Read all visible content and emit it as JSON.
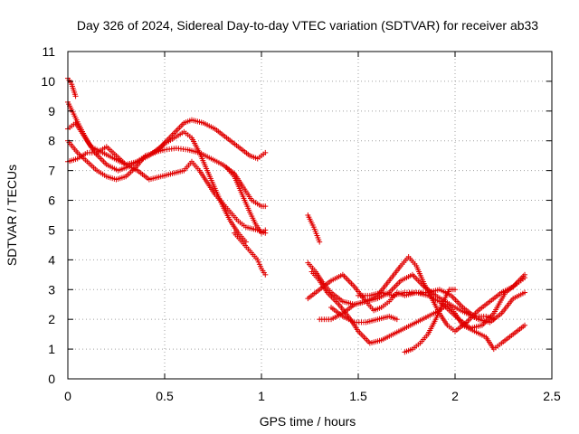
{
  "chart_data": {
    "type": "scatter",
    "title": "Day 326 of 2024, Sidereal Day-to-day VTEC variation (SDTVAR) for receiver ab33",
    "xlabel": "GPS time / hours",
    "ylabel": "SDTVAR / TECUs",
    "xlim": [
      0,
      2.5
    ],
    "ylim": [
      0,
      11
    ],
    "x_ticks": [
      "0",
      "0.5",
      "1",
      "1.5",
      "2",
      "2.5"
    ],
    "y_ticks": [
      "0",
      "1",
      "2",
      "3",
      "4",
      "5",
      "6",
      "7",
      "8",
      "9",
      "10",
      "11"
    ],
    "grid": true,
    "marker": "+",
    "color": "#e00000",
    "series_paths": [
      [
        [
          0.0,
          10.1
        ],
        [
          0.02,
          9.9
        ],
        [
          0.04,
          9.5
        ]
      ],
      [
        [
          0.0,
          9.3
        ],
        [
          0.03,
          8.9
        ],
        [
          0.06,
          8.5
        ],
        [
          0.1,
          8.0
        ],
        [
          0.14,
          7.6
        ],
        [
          0.2,
          7.2
        ],
        [
          0.26,
          7.0
        ],
        [
          0.32,
          7.15
        ],
        [
          0.38,
          7.4
        ],
        [
          0.44,
          7.6
        ],
        [
          0.5,
          7.7
        ],
        [
          0.56,
          7.75
        ],
        [
          0.62,
          7.7
        ],
        [
          0.68,
          7.6
        ],
        [
          0.74,
          7.4
        ],
        [
          0.8,
          7.2
        ],
        [
          0.86,
          6.9
        ],
        [
          0.9,
          6.5
        ],
        [
          0.95,
          6.0
        ],
        [
          1.0,
          5.8
        ],
        [
          1.02,
          5.8
        ]
      ],
      [
        [
          0.0,
          8.4
        ],
        [
          0.04,
          8.6
        ],
        [
          0.08,
          8.2
        ],
        [
          0.12,
          7.8
        ],
        [
          0.18,
          7.6
        ],
        [
          0.24,
          7.4
        ],
        [
          0.3,
          7.2
        ],
        [
          0.36,
          7.3
        ],
        [
          0.42,
          7.5
        ],
        [
          0.48,
          7.8
        ],
        [
          0.54,
          8.2
        ],
        [
          0.6,
          8.6
        ],
        [
          0.64,
          8.7
        ],
        [
          0.7,
          8.6
        ],
        [
          0.76,
          8.4
        ],
        [
          0.82,
          8.1
        ],
        [
          0.88,
          7.8
        ],
        [
          0.94,
          7.5
        ],
        [
          0.98,
          7.4
        ],
        [
          1.02,
          7.6
        ]
      ],
      [
        [
          0.0,
          7.3
        ],
        [
          0.05,
          7.4
        ],
        [
          0.1,
          7.6
        ],
        [
          0.15,
          7.6
        ],
        [
          0.2,
          7.8
        ],
        [
          0.25,
          7.5
        ],
        [
          0.3,
          7.2
        ],
        [
          0.36,
          7.0
        ],
        [
          0.42,
          6.7
        ],
        [
          0.48,
          6.8
        ],
        [
          0.54,
          6.9
        ],
        [
          0.6,
          7.0
        ],
        [
          0.64,
          7.3
        ],
        [
          0.68,
          7.0
        ],
        [
          0.72,
          6.6
        ],
        [
          0.76,
          6.2
        ],
        [
          0.8,
          5.9
        ],
        [
          0.84,
          5.6
        ],
        [
          0.88,
          5.3
        ],
        [
          0.92,
          5.1
        ],
        [
          0.98,
          5.0
        ],
        [
          1.02,
          4.9
        ]
      ],
      [
        [
          0.0,
          8.0
        ],
        [
          0.05,
          7.6
        ],
        [
          0.1,
          7.3
        ],
        [
          0.15,
          7.0
        ],
        [
          0.2,
          6.8
        ],
        [
          0.25,
          6.7
        ],
        [
          0.3,
          6.8
        ],
        [
          0.35,
          7.1
        ],
        [
          0.4,
          7.5
        ],
        [
          0.45,
          7.6
        ],
        [
          0.5,
          7.9
        ],
        [
          0.55,
          8.1
        ],
        [
          0.6,
          8.3
        ],
        [
          0.64,
          8.1
        ],
        [
          0.68,
          7.6
        ],
        [
          0.72,
          7.0
        ],
        [
          0.76,
          6.4
        ],
        [
          0.8,
          5.8
        ],
        [
          0.84,
          5.3
        ],
        [
          0.88,
          4.9
        ],
        [
          0.92,
          4.6
        ]
      ],
      [
        [
          0.82,
          7.1
        ],
        [
          0.86,
          6.8
        ],
        [
          0.9,
          6.2
        ],
        [
          0.94,
          5.6
        ],
        [
          0.97,
          5.2
        ],
        [
          1.0,
          4.9
        ],
        [
          1.02,
          5.0
        ]
      ],
      [
        [
          0.86,
          4.9
        ],
        [
          0.9,
          4.6
        ],
        [
          0.94,
          4.3
        ],
        [
          0.98,
          4.0
        ],
        [
          1.0,
          3.7
        ],
        [
          1.02,
          3.5
        ]
      ],
      [
        [
          1.24,
          5.5
        ],
        [
          1.27,
          5.1
        ],
        [
          1.3,
          4.6
        ]
      ],
      [
        [
          1.24,
          3.9
        ],
        [
          1.28,
          3.6
        ],
        [
          1.32,
          3.2
        ],
        [
          1.36,
          2.9
        ],
        [
          1.42,
          2.6
        ],
        [
          1.48,
          2.5
        ],
        [
          1.54,
          2.6
        ],
        [
          1.6,
          2.7
        ],
        [
          1.66,
          2.9
        ],
        [
          1.72,
          3.3
        ],
        [
          1.78,
          3.5
        ],
        [
          1.84,
          3.1
        ],
        [
          1.9,
          2.8
        ],
        [
          1.95,
          2.6
        ],
        [
          2.0,
          2.4
        ],
        [
          2.06,
          2.2
        ],
        [
          2.12,
          2.0
        ],
        [
          2.18,
          1.9
        ],
        [
          2.24,
          2.2
        ],
        [
          2.3,
          2.7
        ],
        [
          2.36,
          2.9
        ]
      ],
      [
        [
          1.24,
          2.7
        ],
        [
          1.3,
          3.0
        ],
        [
          1.36,
          3.3
        ],
        [
          1.42,
          3.5
        ],
        [
          1.48,
          3.1
        ],
        [
          1.54,
          2.6
        ],
        [
          1.58,
          2.3
        ],
        [
          1.62,
          2.4
        ],
        [
          1.66,
          2.6
        ],
        [
          1.7,
          2.9
        ],
        [
          1.74,
          2.8
        ],
        [
          1.8,
          2.9
        ],
        [
          1.86,
          2.8
        ],
        [
          1.92,
          2.6
        ],
        [
          1.97,
          2.3
        ],
        [
          2.02,
          2.0
        ],
        [
          2.08,
          1.7
        ],
        [
          2.14,
          1.8
        ],
        [
          2.2,
          2.2
        ],
        [
          2.26,
          2.9
        ],
        [
          2.32,
          3.2
        ],
        [
          2.36,
          3.4
        ]
      ],
      [
        [
          1.26,
          3.6
        ],
        [
          1.3,
          3.3
        ],
        [
          1.34,
          2.9
        ],
        [
          1.4,
          2.5
        ],
        [
          1.46,
          2.0
        ],
        [
          1.5,
          1.6
        ],
        [
          1.56,
          1.2
        ],
        [
          1.62,
          1.3
        ],
        [
          1.68,
          1.5
        ],
        [
          1.74,
          1.7
        ],
        [
          1.8,
          1.9
        ],
        [
          1.86,
          2.1
        ],
        [
          1.92,
          2.3
        ],
        [
          1.96,
          2.5
        ],
        [
          2.0,
          2.2
        ],
        [
          2.04,
          1.8
        ],
        [
          2.1,
          1.6
        ],
        [
          2.16,
          1.4
        ],
        [
          2.2,
          1.0
        ],
        [
          2.24,
          1.2
        ],
        [
          2.3,
          1.5
        ],
        [
          2.36,
          1.8
        ]
      ],
      [
        [
          1.3,
          2.0
        ],
        [
          1.36,
          2.0
        ],
        [
          1.42,
          2.2
        ],
        [
          1.48,
          2.5
        ],
        [
          1.54,
          2.6
        ],
        [
          1.6,
          2.8
        ],
        [
          1.66,
          3.3
        ],
        [
          1.72,
          3.8
        ],
        [
          1.76,
          4.1
        ],
        [
          1.8,
          3.8
        ],
        [
          1.84,
          3.2
        ],
        [
          1.88,
          2.7
        ],
        [
          1.92,
          2.2
        ],
        [
          1.96,
          1.8
        ],
        [
          2.0,
          1.6
        ],
        [
          2.06,
          1.9
        ],
        [
          2.12,
          2.3
        ],
        [
          2.18,
          2.6
        ],
        [
          2.24,
          2.9
        ],
        [
          2.3,
          3.1
        ],
        [
          2.36,
          3.5
        ]
      ],
      [
        [
          1.36,
          2.4
        ],
        [
          1.42,
          2.1
        ],
        [
          1.48,
          1.9
        ],
        [
          1.54,
          1.9
        ],
        [
          1.6,
          2.0
        ],
        [
          1.66,
          2.1
        ],
        [
          1.7,
          2.0
        ]
      ],
      [
        [
          1.74,
          0.9
        ],
        [
          1.78,
          1.0
        ],
        [
          1.82,
          1.2
        ],
        [
          1.86,
          1.5
        ],
        [
          1.9,
          2.0
        ],
        [
          1.94,
          2.6
        ],
        [
          1.97,
          3.0
        ],
        [
          2.0,
          3.0
        ]
      ],
      [
        [
          1.5,
          2.8
        ],
        [
          1.56,
          2.8
        ],
        [
          1.62,
          2.9
        ],
        [
          1.68,
          2.8
        ],
        [
          1.74,
          2.9
        ],
        [
          1.8,
          2.9
        ],
        [
          1.86,
          2.9
        ],
        [
          1.92,
          3.0
        ],
        [
          1.98,
          2.8
        ],
        [
          2.04,
          2.4
        ],
        [
          2.1,
          2.1
        ],
        [
          2.16,
          2.1
        ],
        [
          2.2,
          2.0
        ]
      ]
    ]
  }
}
